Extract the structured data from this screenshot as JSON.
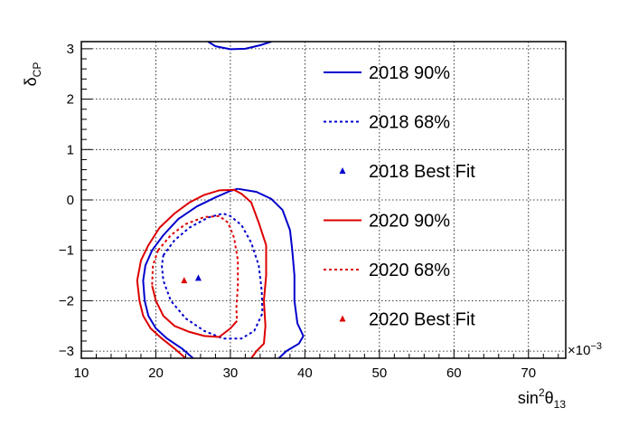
{
  "chart_data": {
    "type": "line",
    "xlabel": "sin²θ₁₃",
    "xlabel_parts": {
      "base": "sin",
      "sup": "2",
      "mid": "θ",
      "sub": "13"
    },
    "ylabel_parts": {
      "base": "δ",
      "sub": "CP"
    },
    "x_multiplier": "×10",
    "x_multiplier_exp": "−3",
    "xlim": [
      10,
      75
    ],
    "ylim": [
      -3.1416,
      3.1416
    ],
    "x_ticks": [
      10,
      20,
      30,
      40,
      50,
      60,
      70
    ],
    "y_ticks": [
      -3,
      -2,
      -1,
      0,
      1,
      2,
      3
    ],
    "x_tick_labels": [
      "10",
      "20",
      "30",
      "40",
      "50",
      "60",
      "70"
    ],
    "y_tick_labels": [
      "−3",
      "−2",
      "−1",
      "0",
      "1",
      "2",
      "3"
    ],
    "grid": true,
    "legend_position": "right",
    "colors": {
      "blue": "#0000cc",
      "red": "#dd0000"
    },
    "series": [
      {
        "name": "2018 90%",
        "color": "#0000cc",
        "style": "solid",
        "segments": [
          [
            [
              27.0,
              3.1416
            ],
            [
              28.0,
              3.05
            ],
            [
              30.0,
              2.99
            ],
            [
              32.0,
              3.0
            ],
            [
              34.0,
              3.07
            ],
            [
              35.5,
              3.1416
            ]
          ],
          [
            [
              31.0,
              0.22
            ],
            [
              33.5,
              0.16
            ],
            [
              35.5,
              0.02
            ],
            [
              37.0,
              -0.2
            ],
            [
              38.0,
              -0.6
            ],
            [
              38.3,
              -1.0
            ],
            [
              38.6,
              -1.5
            ],
            [
              38.6,
              -2.0
            ],
            [
              39.0,
              -2.45
            ],
            [
              39.8,
              -2.7
            ],
            [
              39.2,
              -2.85
            ],
            [
              37.5,
              -3.0
            ],
            [
              36.5,
              -3.1416
            ]
          ],
          [
            [
              19.5,
              -1.0
            ],
            [
              21.0,
              -0.7
            ],
            [
              23.0,
              -0.38
            ],
            [
              25.5,
              -0.13
            ],
            [
              28.0,
              0.05
            ],
            [
              30.0,
              0.18
            ],
            [
              31.0,
              0.22
            ]
          ],
          [
            [
              19.5,
              -1.0
            ],
            [
              18.6,
              -1.3
            ],
            [
              18.3,
              -1.6
            ],
            [
              18.5,
              -2.0
            ],
            [
              19.0,
              -2.3
            ],
            [
              20.0,
              -2.55
            ],
            [
              21.5,
              -2.75
            ],
            [
              23.5,
              -2.95
            ],
            [
              25.0,
              -3.1416
            ]
          ]
        ]
      },
      {
        "name": "2018 68%",
        "color": "#0000cc",
        "style": "dashed",
        "segments": [
          [
            [
              21.0,
              -1.1
            ],
            [
              22.5,
              -0.8
            ],
            [
              24.5,
              -0.55
            ],
            [
              27.0,
              -0.35
            ],
            [
              29.0,
              -0.27
            ],
            [
              30.0,
              -0.32
            ],
            [
              31.5,
              -0.5
            ],
            [
              32.8,
              -0.85
            ],
            [
              33.8,
              -1.3
            ],
            [
              34.2,
              -1.8
            ],
            [
              34.3,
              -2.25
            ],
            [
              33.2,
              -2.6
            ],
            [
              31.5,
              -2.75
            ],
            [
              29.0,
              -2.75
            ],
            [
              26.5,
              -2.6
            ],
            [
              24.0,
              -2.35
            ],
            [
              22.0,
              -2.0
            ],
            [
              21.0,
              -1.6
            ],
            [
              20.8,
              -1.3
            ],
            [
              21.0,
              -1.1
            ]
          ]
        ]
      },
      {
        "name": "2018 Best Fit",
        "color": "#0000cc",
        "style": "marker",
        "points": [
          [
            25.7,
            -1.55
          ]
        ]
      },
      {
        "name": "2020 90%",
        "color": "#dd0000",
        "style": "solid",
        "segments": [
          [
            [
              19.0,
              -0.9
            ],
            [
              20.5,
              -0.55
            ],
            [
              22.5,
              -0.27
            ],
            [
              24.5,
              -0.05
            ],
            [
              26.5,
              0.1
            ],
            [
              28.5,
              0.19
            ],
            [
              30.5,
              0.2
            ],
            [
              31.5,
              0.12
            ],
            [
              32.8,
              -0.05
            ],
            [
              33.8,
              -0.45
            ],
            [
              34.8,
              -0.9
            ],
            [
              34.8,
              -1.5
            ],
            [
              34.5,
              -2.0
            ],
            [
              34.7,
              -2.5
            ],
            [
              34.5,
              -2.85
            ],
            [
              33.5,
              -3.0
            ],
            [
              32.8,
              -3.1416
            ]
          ],
          [
            [
              19.0,
              -0.9
            ],
            [
              18.0,
              -1.2
            ],
            [
              17.5,
              -1.6
            ],
            [
              17.8,
              -2.0
            ],
            [
              18.3,
              -2.3
            ],
            [
              19.3,
              -2.55
            ],
            [
              20.8,
              -2.75
            ],
            [
              22.5,
              -2.95
            ],
            [
              24.0,
              -3.1416
            ]
          ]
        ]
      },
      {
        "name": "2020 68%",
        "color": "#dd0000",
        "style": "dashed",
        "segments": [
          [
            [
              20.3,
              -1.0
            ],
            [
              22.0,
              -0.7
            ],
            [
              24.0,
              -0.48
            ],
            [
              26.5,
              -0.34
            ],
            [
              28.5,
              -0.32
            ],
            [
              29.7,
              -0.45
            ],
            [
              30.5,
              -0.75
            ],
            [
              31.0,
              -1.2
            ],
            [
              31.0,
              -1.7
            ],
            [
              30.8,
              -2.15
            ],
            [
              30.9,
              -2.4
            ]
          ],
          [
            [
              20.3,
              -1.0
            ],
            [
              19.6,
              -1.3
            ],
            [
              19.5,
              -1.7
            ]
          ]
        ]
      },
      {
        "name": "2020 68% lower",
        "color": "#dd0000",
        "style": "solid",
        "segments": [
          [
            [
              19.5,
              -1.7
            ],
            [
              20.0,
              -2.0
            ],
            [
              21.0,
              -2.3
            ],
            [
              22.5,
              -2.5
            ],
            [
              24.5,
              -2.62
            ],
            [
              26.5,
              -2.7
            ],
            [
              28.5,
              -2.72
            ],
            [
              30.0,
              -2.55
            ],
            [
              30.9,
              -2.4
            ]
          ]
        ]
      },
      {
        "name": "2020 Best Fit",
        "color": "#dd0000",
        "style": "marker",
        "points": [
          [
            23.8,
            -1.6
          ]
        ]
      }
    ],
    "legend": [
      {
        "label": "2018 90%",
        "color": "#0000cc",
        "style": "solid"
      },
      {
        "label": "2018 68%",
        "color": "#0000cc",
        "style": "dashed"
      },
      {
        "label": "2018 Best Fit",
        "color": "#0000cc",
        "style": "marker"
      },
      {
        "label": "2020 90%",
        "color": "#dd0000",
        "style": "solid"
      },
      {
        "label": "2020 68%",
        "color": "#dd0000",
        "style": "dashed"
      },
      {
        "label": "2020 Best Fit",
        "color": "#dd0000",
        "style": "marker"
      }
    ]
  }
}
